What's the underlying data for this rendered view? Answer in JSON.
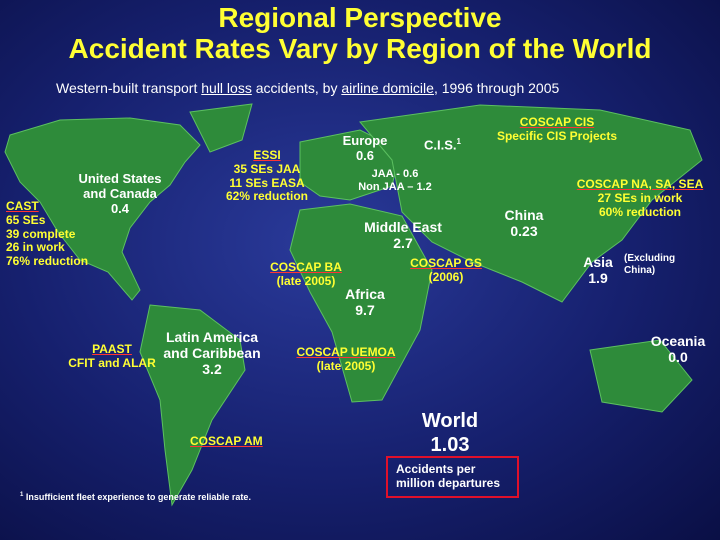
{
  "header": {
    "title": [
      "Regional Perspective",
      "Accident Rates Vary by Region of the World"
    ],
    "subtitle": [
      "Western-built transport ",
      "hull loss",
      " accidents, by ",
      "airline domicile",
      ", 1996 through 2005"
    ]
  },
  "labels": {
    "us_canada": [
      "United States",
      "and Canada",
      "0.4"
    ],
    "cast": [
      "CAST",
      "65 SEs",
      "39 complete",
      "26 in work",
      "76% reduction"
    ],
    "essi": [
      "ESSI",
      "35 SEs JAA",
      "11 SEs EASA",
      "62% reduction"
    ],
    "europe": [
      "Europe",
      "0.6"
    ],
    "cis": [
      "C.I.S.",
      "1"
    ],
    "cis_split": [
      "JAA - 0.6",
      "Non JAA – 1.2"
    ],
    "coscap_cis": [
      "COSCAP CIS",
      "Specific CIS Projects"
    ],
    "coscap_nasasea": [
      "COSCAP NA, SA, SEA",
      "27 SEs in work",
      "60% reduction"
    ],
    "china": [
      "China",
      "0.23"
    ],
    "middle_east": [
      "Middle East",
      "2.7"
    ],
    "coscap_gs": [
      "COSCAP GS",
      "(2006)"
    ],
    "coscap_ba": [
      "COSCAP BA",
      "(late 2005)"
    ],
    "africa": [
      "Africa",
      "9.7"
    ],
    "asia": [
      "Asia",
      "1.9"
    ],
    "asia_note": [
      "(Excluding",
      "China)"
    ],
    "oceania": [
      "Oceania",
      "0.0"
    ],
    "latin_america": [
      "Latin America",
      "and Caribbean",
      "3.2"
    ],
    "paast": [
      "PAAST",
      "CFIT and ALAR"
    ],
    "coscap_uemoa": [
      "COSCAP UEMOA",
      "(late 2005)"
    ],
    "coscap_am": [
      "COSCAP AM"
    ],
    "world": [
      "World",
      "1.03"
    ],
    "units": [
      "Accidents per",
      "million departures"
    ]
  },
  "footnote": [
    "1",
    "Insufficient fleet experience to generate reliable rate."
  ]
}
